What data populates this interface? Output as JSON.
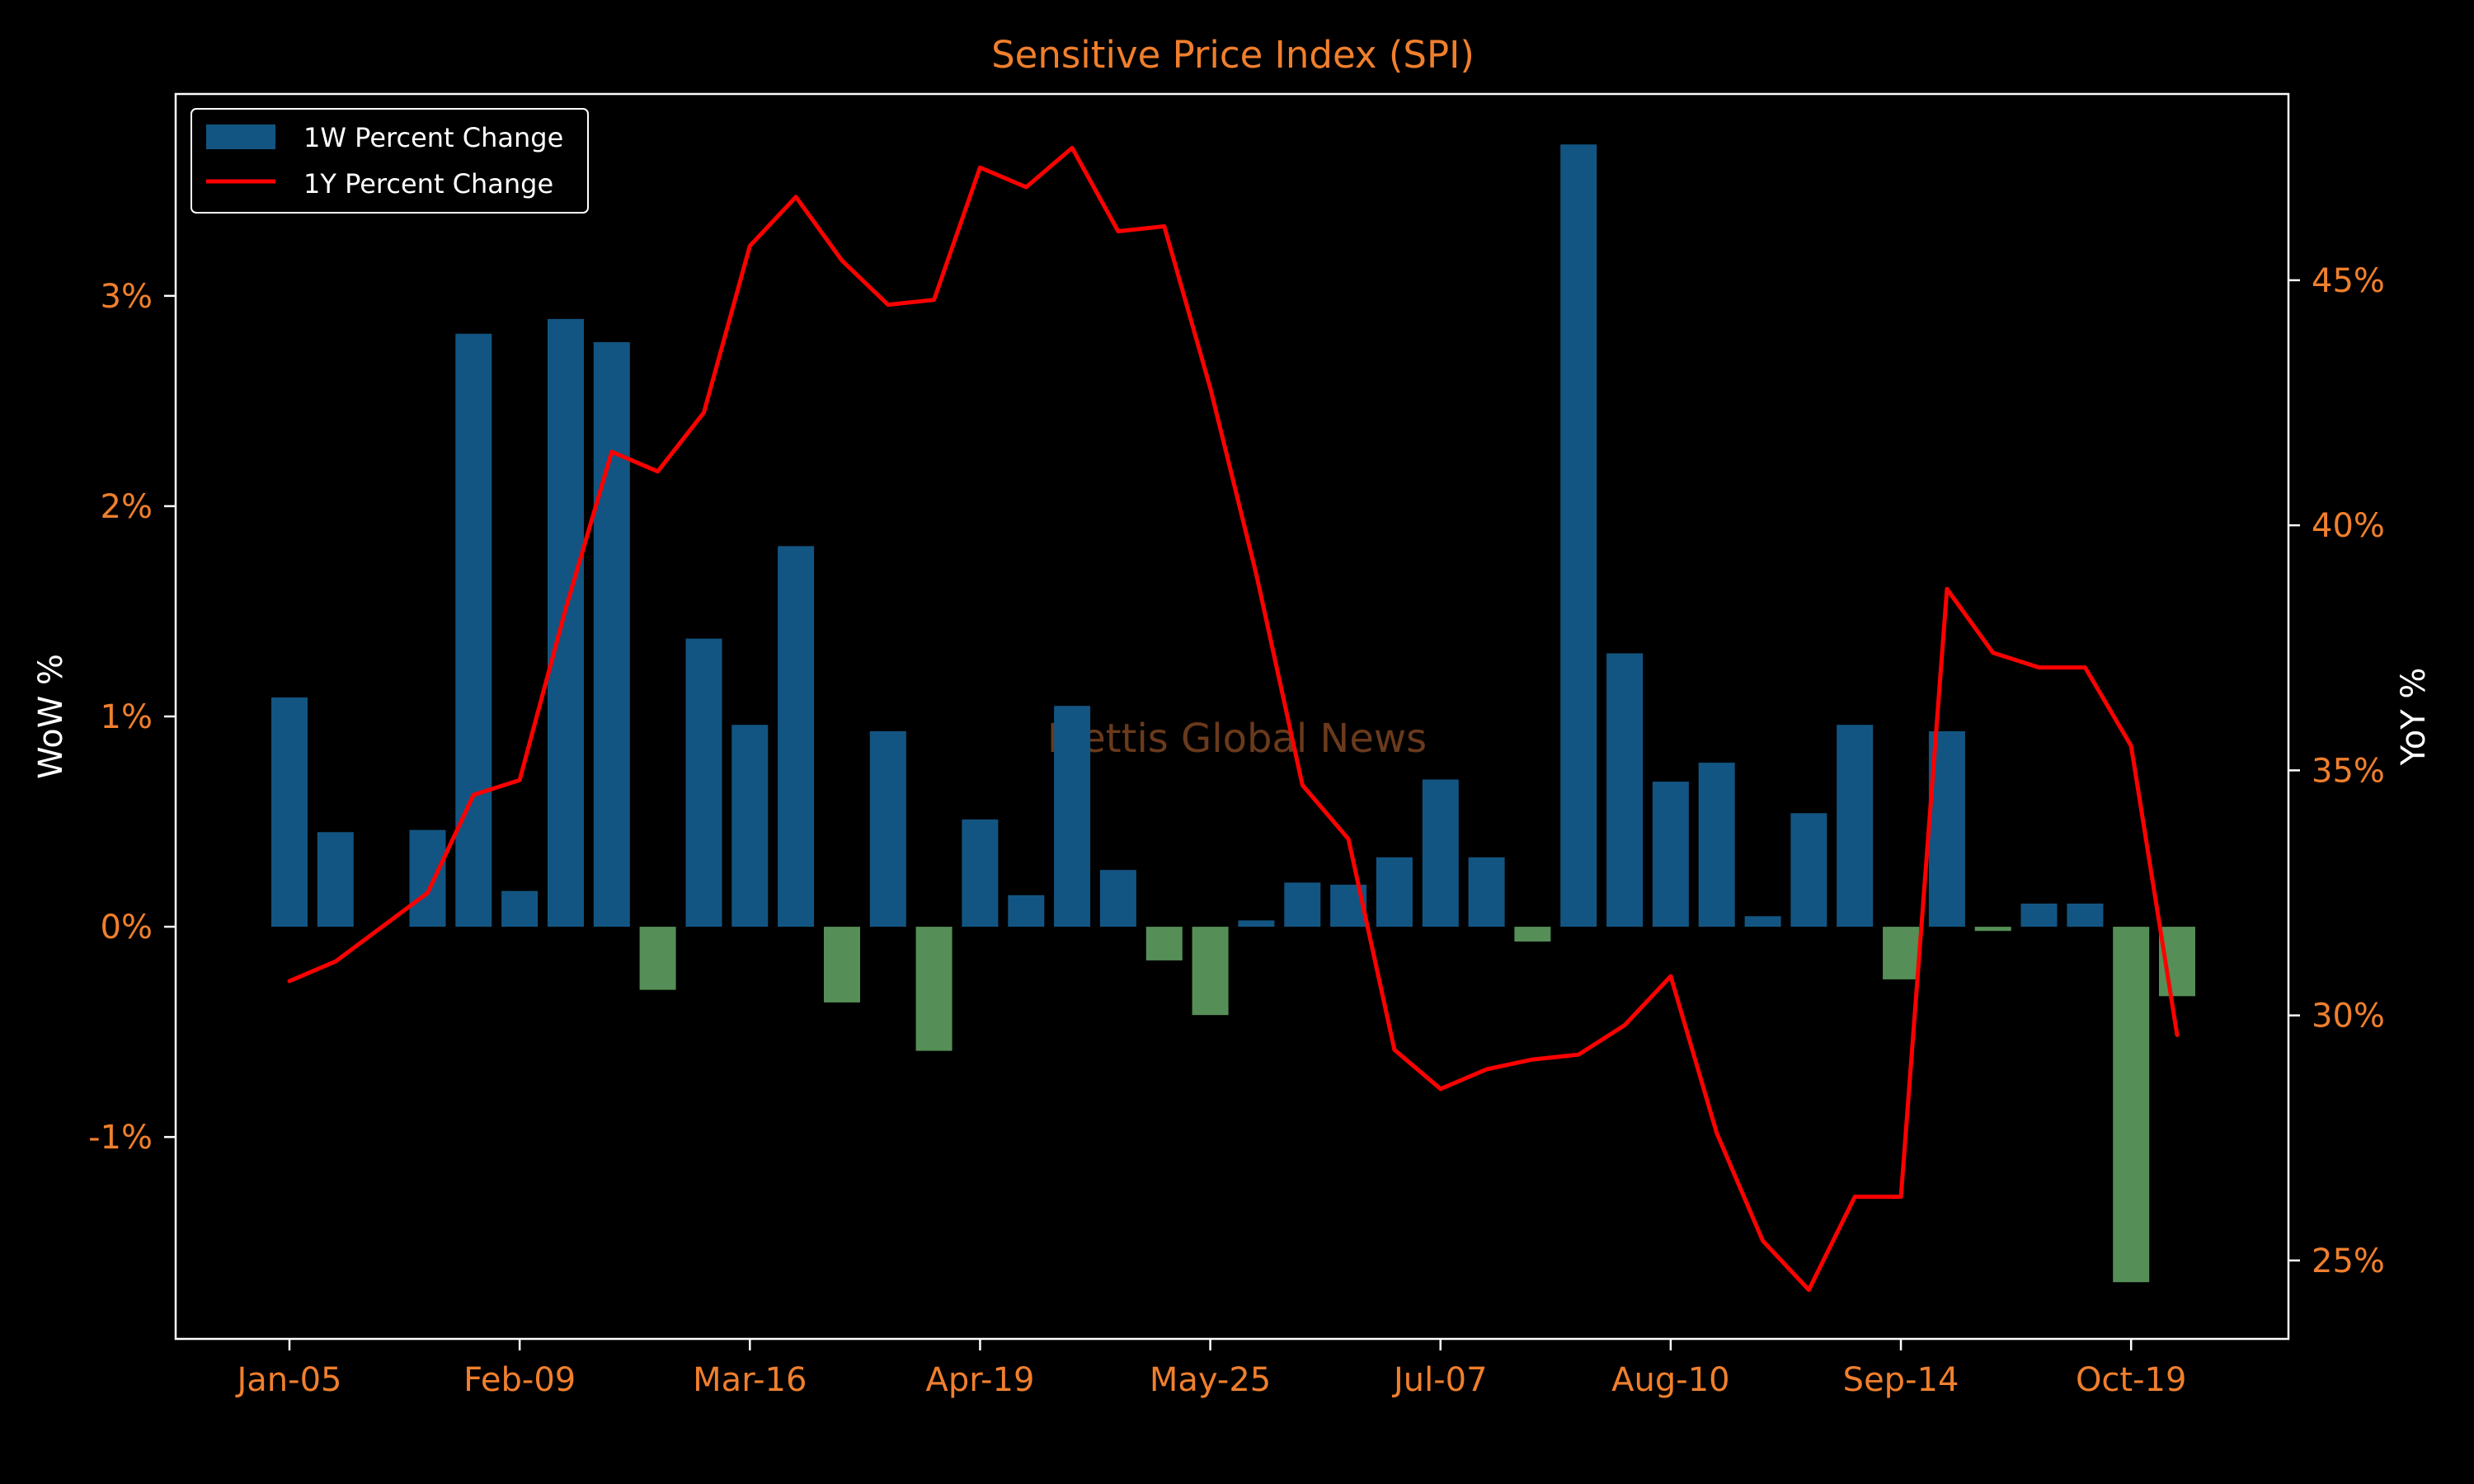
{
  "chart_data": {
    "type": "bar+line",
    "title": "Sensitive Price Index (SPI)",
    "watermark": "Mettis Global News",
    "y_left_label": "WoW %",
    "y_right_label": "YoY %",
    "x_tick_labels": [
      "Jan-05",
      "Feb-09",
      "Mar-16",
      "Apr-19",
      "May-25",
      "Jul-07",
      "Aug-10",
      "Sep-14",
      "Oct-19"
    ],
    "x_tick_indices": [
      0,
      5,
      10,
      15,
      20,
      25,
      30,
      35,
      40
    ],
    "y_left_ticks": [
      -1,
      0,
      1,
      2,
      3
    ],
    "y_left_tick_labels": [
      "-1%",
      "0%",
      "1%",
      "2%",
      "3%"
    ],
    "y_left_range": [
      -1.96,
      3.96
    ],
    "y_right_ticks": [
      25,
      30,
      35,
      40,
      45
    ],
    "y_right_tick_labels": [
      "25%",
      "30%",
      "35%",
      "40%",
      "45%"
    ],
    "y_right_range": [
      23.4,
      48.8
    ],
    "legend": [
      {
        "label": "1W Percent Change",
        "kind": "bar"
      },
      {
        "label": "1Y Percent Change",
        "kind": "line"
      }
    ],
    "legend_position": "top-left",
    "colors": {
      "positive_bar": "#135582",
      "negative_bar": "#558f57",
      "line": "#ff0000",
      "text": "#f07f2d",
      "axis": "#ffffff",
      "label": "#ffffff"
    },
    "series": [
      {
        "name": "1W Percent Change",
        "kind": "bar",
        "axis": "left",
        "values": [
          1.09,
          0.45,
          null,
          0.46,
          2.82,
          0.17,
          2.89,
          2.78,
          -0.3,
          1.37,
          0.96,
          1.81,
          -0.36,
          0.93,
          -0.59,
          0.51,
          0.15,
          1.05,
          0.27,
          -0.16,
          -0.42,
          0.03,
          0.21,
          0.2,
          0.33,
          0.7,
          0.33,
          -0.07,
          3.72,
          1.3,
          0.69,
          0.78,
          0.05,
          0.54,
          0.96,
          -0.25,
          0.93,
          -0.02,
          0.11,
          0.11,
          -1.69,
          -0.33
        ]
      },
      {
        "name": "1Y Percent Change",
        "kind": "line",
        "axis": "right",
        "values": [
          30.7,
          31.1,
          31.8,
          32.5,
          34.5,
          34.8,
          38.3,
          41.5,
          41.1,
          42.3,
          45.7,
          46.7,
          45.4,
          44.5,
          44.6,
          47.3,
          46.9,
          47.7,
          46.0,
          46.1,
          42.8,
          39.0,
          34.7,
          33.6,
          29.3,
          28.5,
          28.9,
          29.1,
          29.2,
          29.8,
          30.8,
          27.6,
          25.4,
          24.4,
          26.3,
          26.3,
          38.7,
          37.4,
          37.1,
          37.1,
          35.5,
          29.6
        ]
      }
    ]
  }
}
